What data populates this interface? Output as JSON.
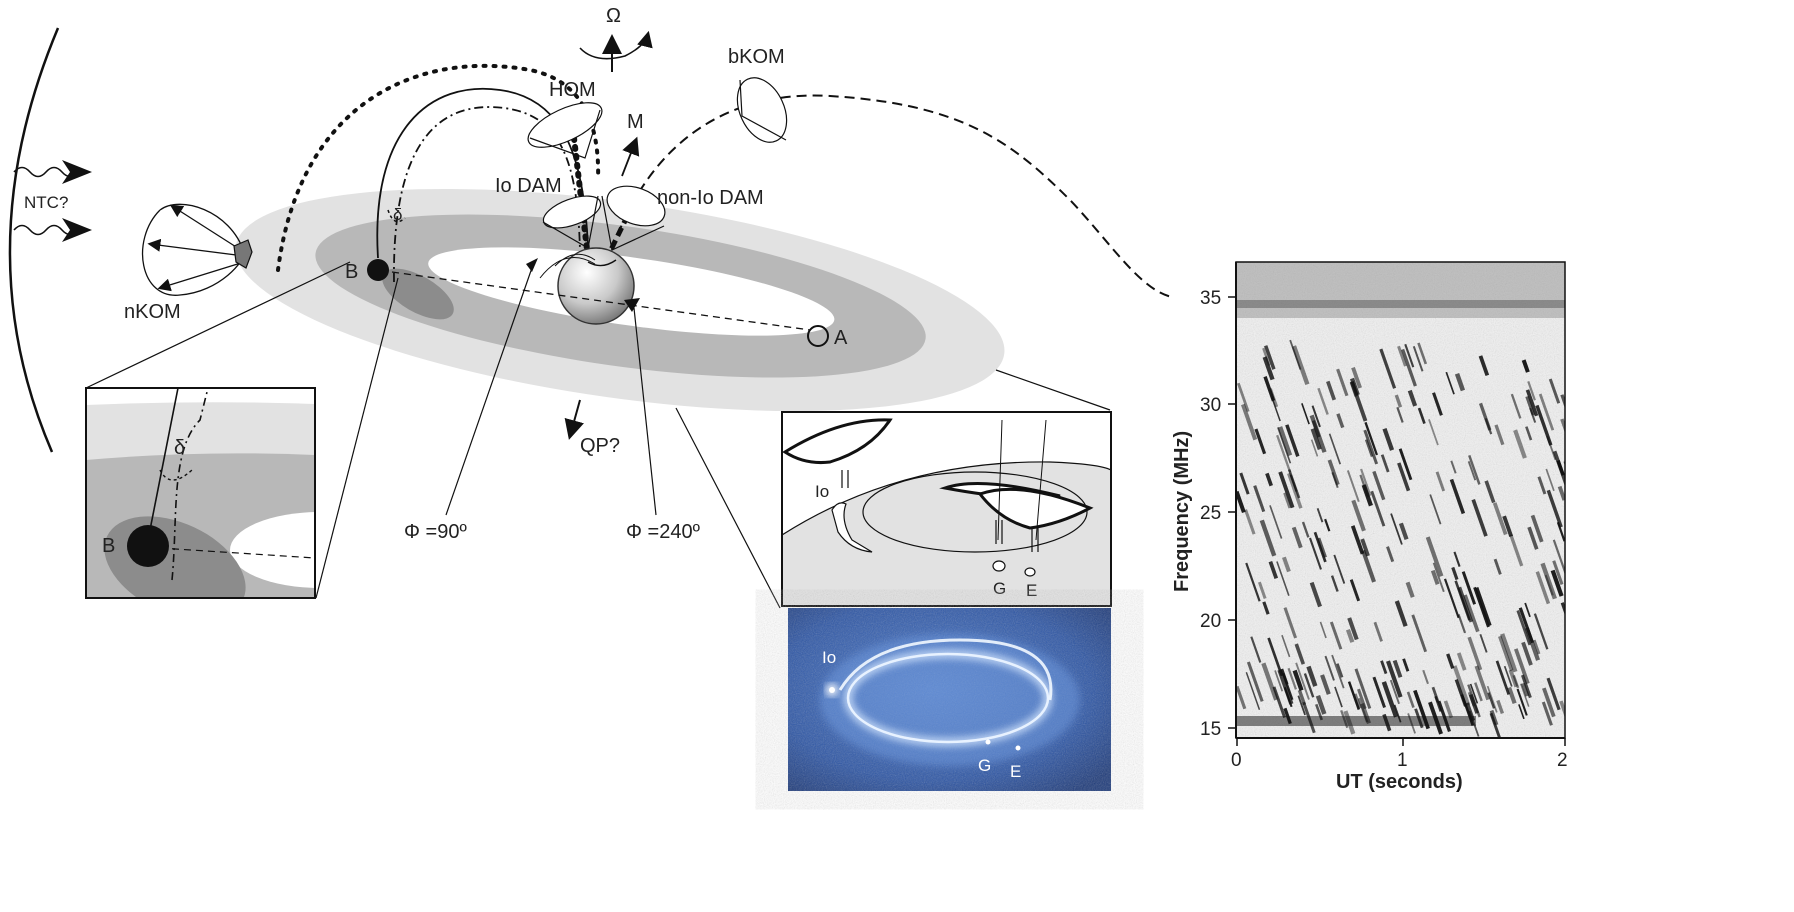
{
  "diagram": {
    "labels": {
      "omega": "Ω",
      "hom": "HOM",
      "bkom": "bKOM",
      "m": "M",
      "io_dam": "Io DAM",
      "non_io_dam": "non-Io DAM",
      "ntc": "NTC?",
      "nkom": "nKOM",
      "b": "B",
      "a": "A",
      "delta": "δ",
      "qp": "QP?",
      "phi90": "Φ =90º",
      "phi240": "Φ =240º"
    },
    "inset_left": {
      "b": "B",
      "delta": "δ"
    },
    "inset_footprint": {
      "io": "Io",
      "g": "G",
      "e": "E"
    },
    "aurora_photo": {
      "io": "Io",
      "g": "G",
      "e": "E"
    }
  },
  "spectrogram": {
    "ylabel": "Frequency (MHz)",
    "xlabel": "UT (seconds)",
    "y_ticks": [
      "15",
      "20",
      "25",
      "30",
      "35"
    ],
    "x_ticks": [
      "0",
      "1",
      "2"
    ]
  },
  "colors": {
    "torus_light": "#e2e2e2",
    "torus_dark": "#b8b8b8",
    "aurora_blue": "#2f57a8",
    "aurora_glow": "#cfe4ff"
  }
}
